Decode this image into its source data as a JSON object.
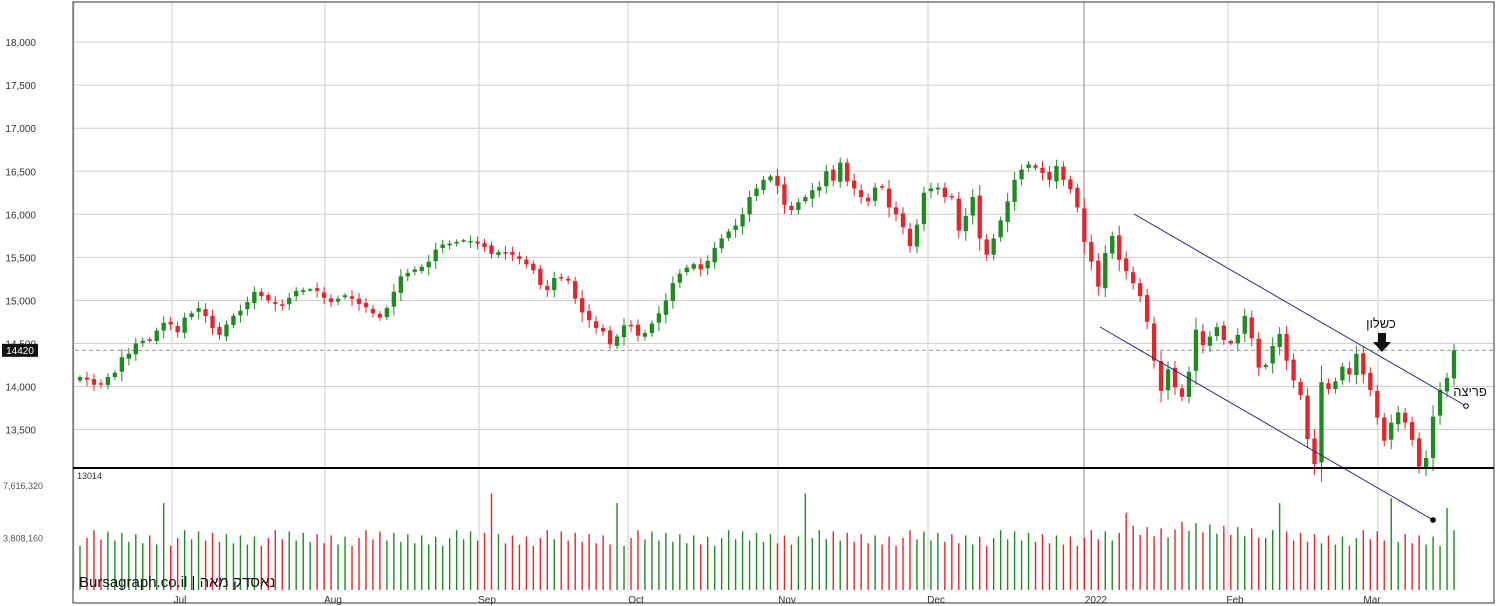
{
  "app": {
    "watermark": "Bursagraph.co.il | נאסדק מאה"
  },
  "chart_data": {
    "type": "candlestick",
    "instrument": "נאסדק מאה",
    "y_axis": {
      "range": [
        13200,
        18300
      ],
      "ticks": [
        13500,
        14000,
        14500,
        15000,
        15500,
        16000,
        16500,
        17000,
        17500,
        18000
      ],
      "tick_labels": [
        "13,500",
        "14,000",
        "14,500",
        "15,000",
        "15,500",
        "16,000",
        "16,500",
        "17,000",
        "17,500",
        "18,000"
      ]
    },
    "last_price_label": "14420",
    "last_price": 14420,
    "x_axis": {
      "labels": [
        "Jul",
        "Aug",
        "Sep",
        "Oct",
        "Nov",
        "Dec",
        "2022",
        "Feb",
        "Mar"
      ]
    },
    "volume_axis": {
      "range": [
        0,
        8700000
      ],
      "ticks": [
        3808160,
        7616320
      ],
      "tick_labels": [
        "3,808,160",
        "7,616,320"
      ]
    },
    "volume_label": "13014",
    "closes": [
      14110,
      14080,
      14020,
      14030,
      14110,
      14160,
      14340,
      14380,
      14500,
      14530,
      14540,
      14650,
      14740,
      14720,
      14630,
      14800,
      14850,
      14910,
      14820,
      14680,
      14600,
      14720,
      14820,
      14880,
      14980,
      15100,
      15050,
      15000,
      14960,
      14950,
      15030,
      15110,
      15120,
      15130,
      15110,
      15030,
      14980,
      15020,
      15060,
      15020,
      14960,
      14920,
      14850,
      14800,
      14910,
      15100,
      15280,
      15320,
      15360,
      15390,
      15450,
      15590,
      15650,
      15660,
      15680,
      15700,
      15690,
      15660,
      15620,
      15540,
      15560,
      15550,
      15530,
      15480,
      15420,
      15350,
      15180,
      15120,
      15260,
      15270,
      15230,
      15020,
      14860,
      14770,
      14680,
      14640,
      14490,
      14580,
      14710,
      14700,
      14590,
      14620,
      14730,
      14850,
      15000,
      15200,
      15310,
      15380,
      15420,
      15360,
      15460,
      15610,
      15720,
      15800,
      15870,
      16000,
      16200,
      16300,
      16400,
      16440,
      16330,
      16110,
      16050,
      16140,
      16200,
      16280,
      16320,
      16500,
      16390,
      16600,
      16380,
      16300,
      16200,
      16150,
      16310,
      16310,
      16080,
      16000,
      15850,
      15630,
      15880,
      16250,
      16300,
      16310,
      16200,
      16200,
      15810,
      15980,
      16200,
      15720,
      15530,
      15720,
      15930,
      16150,
      16400,
      16520,
      16580,
      16540,
      16480,
      16400,
      16560,
      16400,
      16290,
      16080,
      15680,
      15450,
      15160,
      15550,
      15750,
      15470,
      15340,
      15200,
      15050,
      14750,
      14300,
      13950,
      14200,
      13990,
      13880,
      14170,
      14660,
      14480,
      14580,
      14690,
      14540,
      14500,
      14600,
      14820,
      14560,
      14220,
      14250,
      14470,
      14610,
      14300,
      14070,
      13900,
      13390,
      13100,
      14050,
      13970,
      14060,
      14230,
      14140,
      14380,
      14140,
      13960,
      13640,
      13370,
      13580,
      13700,
      13580,
      13380,
      13070,
      13170,
      13650,
      13960,
      14100,
      14420
    ],
    "volume_peaks": [
      "Jul",
      "Sep",
      "Oct",
      "Nov",
      "Dec",
      "Feb",
      "Mar"
    ],
    "annotations": [
      {
        "text": "כשלון"
      },
      {
        "text": "פריצה"
      }
    ]
  }
}
